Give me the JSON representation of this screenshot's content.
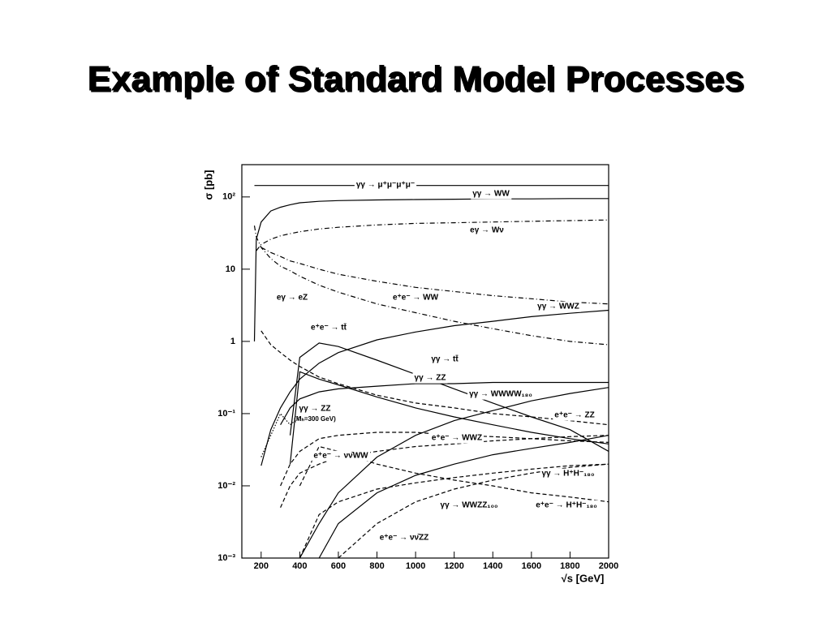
{
  "title": "Example of Standard Model Processes",
  "chart_data": {
    "type": "line",
    "log_y": true,
    "grid": false,
    "xlabel": "√s [GeV]",
    "ylabel": "σ [pb]",
    "xlim": [
      100,
      2000
    ],
    "ylim": [
      0.001,
      280
    ],
    "xticks": [
      200,
      400,
      600,
      800,
      1000,
      1200,
      1400,
      1600,
      1800,
      2000
    ],
    "yticks": [
      {
        "value": 0.001,
        "label": "10⁻³"
      },
      {
        "value": 0.01,
        "label": "10⁻²"
      },
      {
        "value": 0.1,
        "label": "10⁻¹"
      },
      1,
      10,
      {
        "value": 100,
        "label": "10²"
      }
    ],
    "x": [
      165,
      175,
      200,
      250,
      300,
      350,
      400,
      500,
      600,
      800,
      1000,
      1200,
      1400,
      1600,
      1800,
      2000
    ],
    "series": [
      {
        "name": "γγ → μ⁺μ⁻μ⁺μ⁻",
        "color": "#000000",
        "dash": "solid",
        "values": [
          144,
          144,
          144,
          144,
          144,
          144,
          144,
          144,
          144,
          144,
          144,
          144,
          144,
          144,
          144,
          144
        ]
      },
      {
        "name": "γγ → WW",
        "color": "#000000",
        "dash": "solid",
        "values": [
          1,
          26,
          45,
          64,
          72,
          78,
          83,
          87,
          89,
          91,
          92,
          93,
          94,
          94,
          95,
          95
        ]
      },
      {
        "name": "eγ → Wν",
        "color": "#000000",
        "dash": "dashdot",
        "values": [
          null,
          18,
          22,
          26,
          29,
          31,
          33,
          36,
          38,
          41,
          43,
          44,
          45,
          46,
          47,
          48
        ]
      },
      {
        "name": "eγ → eZ",
        "color": "#000000",
        "dash": "dashdot",
        "values": [
          40,
          28,
          20,
          14,
          11,
          9.5,
          8,
          6,
          4.8,
          3.3,
          2.5,
          1.9,
          1.5,
          1.2,
          1.0,
          0.9
        ]
      },
      {
        "name": "e⁺e⁻ → WW",
        "color": "#000000",
        "dash": "dashdot",
        "values": [
          null,
          null,
          20,
          17,
          15,
          13,
          12,
          10,
          8.5,
          6.8,
          5.6,
          4.9,
          4.3,
          3.9,
          3.5,
          3.3
        ]
      },
      {
        "name": "γγ → WWZ",
        "color": "#000000",
        "dash": "solid",
        "values": [
          null,
          null,
          0.019,
          0.06,
          0.12,
          0.2,
          0.3,
          0.5,
          0.7,
          1.05,
          1.35,
          1.65,
          1.9,
          2.2,
          2.45,
          2.7
        ]
      },
      {
        "name": "e⁺e⁻ → tt̄",
        "color": "#000000",
        "dash": "solid",
        "values": [
          null,
          null,
          null,
          null,
          null,
          0.05,
          0.6,
          0.95,
          0.85,
          0.55,
          0.35,
          0.22,
          0.14,
          0.09,
          0.06,
          0.03
        ]
      },
      {
        "name": "γγ → tt̄",
        "color": "#000000",
        "dash": "solid",
        "values": [
          null,
          null,
          null,
          null,
          null,
          0.02,
          0.38,
          0.3,
          0.25,
          0.17,
          0.12,
          0.09,
          0.07,
          0.055,
          0.045,
          0.038
        ]
      },
      {
        "name": "γγ → ZZ",
        "color": "#000000",
        "dash": "solid",
        "values": [
          null,
          null,
          null,
          null,
          0.07,
          0.12,
          0.16,
          0.2,
          0.22,
          0.24,
          0.26,
          0.26,
          0.27,
          0.27,
          0.27,
          0.27
        ]
      },
      {
        "name": "γγ → WWWW₁₈₀",
        "color": "#000000",
        "dash": "solid",
        "values": [
          null,
          null,
          null,
          null,
          null,
          null,
          0.001,
          0.003,
          0.008,
          0.025,
          0.05,
          0.08,
          0.11,
          0.15,
          0.19,
          0.23
        ]
      },
      {
        "name": "e⁺e⁻ → ZZ",
        "color": "#000000",
        "dash": "dashed",
        "values": [
          null,
          null,
          1.4,
          0.9,
          0.7,
          0.55,
          0.45,
          0.32,
          0.26,
          0.18,
          0.14,
          0.12,
          0.1,
          0.09,
          0.08,
          0.07
        ]
      },
      {
        "name": "e⁺e⁻ → WWZ",
        "color": "#000000",
        "dash": "dashed",
        "values": [
          null,
          null,
          null,
          null,
          0.01,
          0.02,
          0.03,
          0.045,
          0.05,
          0.055,
          0.055,
          0.05,
          0.048,
          0.045,
          0.042,
          0.04
        ]
      },
      {
        "name": "e⁺e⁻ → νν̄WW",
        "color": "#000000",
        "dash": "dashed",
        "values": [
          null,
          null,
          null,
          null,
          0.005,
          0.01,
          0.015,
          0.02,
          0.025,
          0.03,
          0.035,
          0.038,
          0.042,
          0.045,
          0.048,
          0.05
        ]
      },
      {
        "name": "γγ → H⁺H⁻₁₈₀",
        "color": "#000000",
        "dash": "dashed",
        "values": [
          null,
          null,
          null,
          null,
          null,
          null,
          0.01,
          0.035,
          0.03,
          0.02,
          0.015,
          0.012,
          0.01,
          0.008,
          0.007,
          0.006
        ]
      },
      {
        "name": "γγ → WWZZ₁₀₀",
        "color": "#000000",
        "dash": "solid",
        "values": [
          null,
          null,
          null,
          null,
          null,
          null,
          null,
          0.001,
          0.003,
          0.008,
          0.014,
          0.02,
          0.027,
          0.033,
          0.04,
          0.05
        ]
      },
      {
        "name": "e⁺e⁻ → H⁺H⁻₁₈₀",
        "color": "#000000",
        "dash": "dashed",
        "values": [
          null,
          null,
          null,
          null,
          null,
          null,
          0.001,
          0.004,
          0.006,
          0.009,
          0.011,
          0.013,
          0.015,
          0.017,
          0.019,
          0.02
        ]
      },
      {
        "name": "e⁺e⁻ → νν̄ZZ",
        "color": "#000000",
        "dash": "dashed",
        "values": [
          null,
          null,
          null,
          null,
          null,
          null,
          null,
          null,
          0.001,
          0.003,
          0.006,
          0.009,
          0.012,
          0.015,
          0.018,
          0.02
        ]
      },
      {
        "name": "γγ → ZZ",
        "note": "(Mₕ=300 GeV)",
        "color": "#000000",
        "dash": "dotted",
        "values": [
          null,
          null,
          0.025,
          0.05,
          0.1,
          0.07,
          0.09,
          null,
          null,
          null,
          null,
          null,
          null,
          null,
          null,
          null
        ]
      }
    ]
  }
}
